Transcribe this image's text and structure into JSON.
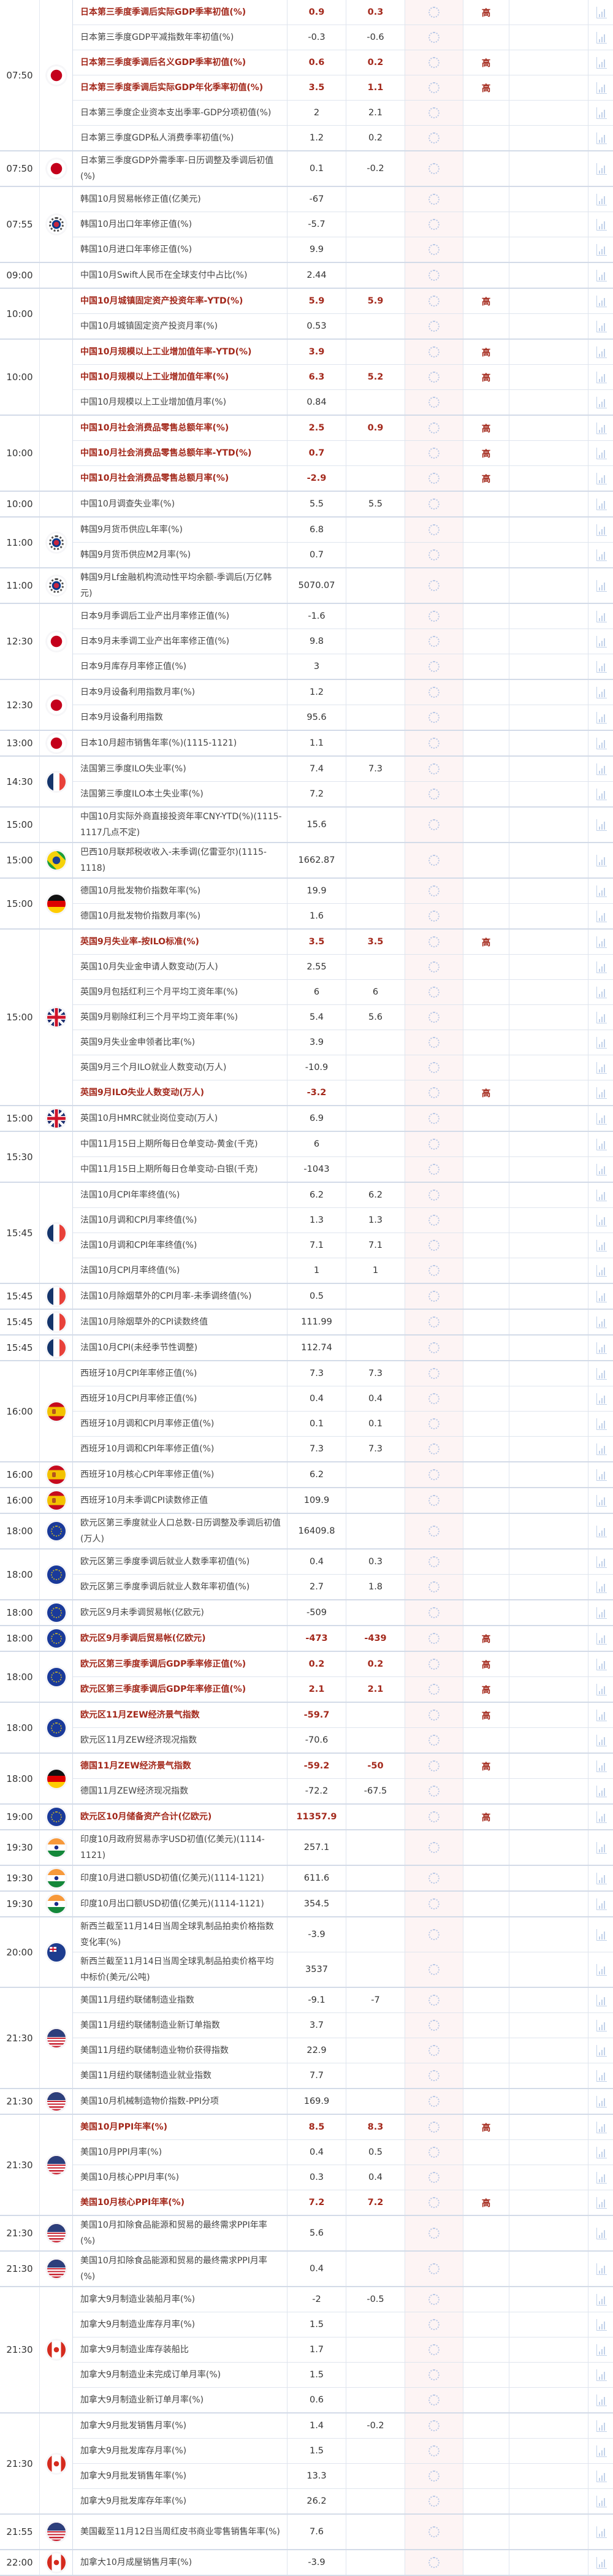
{
  "importance_label": "高",
  "colors": {
    "highlight_text": "#a3281b",
    "actual_column_bg": "#fdf4f4",
    "border": "#d3dbe8"
  },
  "icons": {
    "actual": "loading-spinner-icon",
    "chart": "bar-chart-icon"
  },
  "groups": [
    {
      "time": "07:50",
      "flag": "jp",
      "rows": [
        {
          "name": "日本第三季度季调后实际GDP季率初值(%)",
          "prev": "0.9",
          "forecast": "0.3",
          "imp": true
        },
        {
          "name": "日本第三季度GDP平减指数年率初值(%)",
          "prev": "-0.3",
          "forecast": "-0.6"
        },
        {
          "name": "日本第三季度季调后名义GDP季率初值(%)",
          "prev": "0.6",
          "forecast": "0.2",
          "imp": true
        },
        {
          "name": "日本第三季度季调后实际GDP年化季率初值(%)",
          "prev": "3.5",
          "forecast": "1.1",
          "imp": true
        },
        {
          "name": "日本第三季度企业资本支出季率-GDP分项初值(%)",
          "prev": "2",
          "forecast": "2.1"
        },
        {
          "name": "日本第三季度GDP私人消费季率初值(%)",
          "prev": "1.2",
          "forecast": "0.2"
        }
      ]
    },
    {
      "time": "07:50",
      "flag": "jp",
      "rows": [
        {
          "name": "日本第三季度GDP外需季率-日历调整及季调后初值(%)",
          "prev": "0.1",
          "forecast": "-0.2",
          "dbl": true
        }
      ]
    },
    {
      "time": "07:55",
      "flag": "kr",
      "rows": [
        {
          "name": "韩国10月贸易帐修正值(亿美元)",
          "prev": "-67"
        },
        {
          "name": "韩国10月出口年率修正值(%)",
          "prev": "-5.7"
        },
        {
          "name": "韩国10月进口年率修正值(%)",
          "prev": "9.9"
        }
      ]
    },
    {
      "time": "09:00",
      "flag": "",
      "rows": [
        {
          "name": "中国10月Swift人民币在全球支付中占比(%)",
          "prev": "2.44"
        }
      ]
    },
    {
      "time": "10:00",
      "flag": "",
      "rows": [
        {
          "name": "中国10月城镇固定资产投资年率-YTD(%)",
          "prev": "5.9",
          "forecast": "5.9",
          "imp": true
        },
        {
          "name": "中国10月城镇固定资产投资月率(%)",
          "prev": "0.53"
        }
      ]
    },
    {
      "time": "10:00",
      "flag": "",
      "rows": [
        {
          "name": "中国10月规模以上工业增加值年率-YTD(%)",
          "prev": "3.9",
          "imp": true
        },
        {
          "name": "中国10月规模以上工业增加值年率(%)",
          "prev": "6.3",
          "forecast": "5.2",
          "imp": true
        },
        {
          "name": "中国10月规模以上工业增加值月率(%)",
          "prev": "0.84"
        }
      ]
    },
    {
      "time": "10:00",
      "flag": "",
      "rows": [
        {
          "name": "中国10月社会消费品零售总额年率(%)",
          "prev": "2.5",
          "forecast": "0.9",
          "imp": true
        },
        {
          "name": "中国10月社会消费品零售总额年率-YTD(%)",
          "prev": "0.7",
          "imp": true
        },
        {
          "name": "中国10月社会消费品零售总额月率(%)",
          "prev": "-2.9",
          "imp": true
        }
      ]
    },
    {
      "time": "10:00",
      "flag": "",
      "rows": [
        {
          "name": "中国10月调查失业率(%)",
          "prev": "5.5",
          "forecast": "5.5"
        }
      ]
    },
    {
      "time": "11:00",
      "flag": "kr",
      "rows": [
        {
          "name": "韩国9月货币供应L年率(%)",
          "prev": "6.8"
        },
        {
          "name": "韩国9月货币供应M2月率(%)",
          "prev": "0.7"
        }
      ]
    },
    {
      "time": "11:00",
      "flag": "kr",
      "rows": [
        {
          "name": "韩国9月Lf金融机构流动性平均余额-季调后(万亿韩元)",
          "prev": "5070.07",
          "dbl": true
        }
      ]
    },
    {
      "time": "12:30",
      "flag": "jp",
      "rows": [
        {
          "name": "日本9月季调后工业产出月率修正值(%)",
          "prev": "-1.6"
        },
        {
          "name": "日本9月未季调工业产出年率修正值(%)",
          "prev": "9.8"
        },
        {
          "name": "日本9月库存月率修正值(%)",
          "prev": "3"
        }
      ]
    },
    {
      "time": "12:30",
      "flag": "jp",
      "rows": [
        {
          "name": "日本9月设备利用指数月率(%)",
          "prev": "1.2"
        },
        {
          "name": "日本9月设备利用指数",
          "prev": "95.6"
        }
      ]
    },
    {
      "time": "13:00",
      "flag": "jp",
      "rows": [
        {
          "name": "日本10月超市销售年率(%)(1115-1121)",
          "prev": "1.1"
        }
      ]
    },
    {
      "time": "14:30",
      "flag": "fr",
      "rows": [
        {
          "name": "法国第三季度ILO失业率(%)",
          "prev": "7.4",
          "forecast": "7.3"
        },
        {
          "name": "法国第三季度ILO本土失业率(%)",
          "prev": "7.2"
        }
      ]
    },
    {
      "time": "15:00",
      "flag": "",
      "rows": [
        {
          "name": "中国10月实际外商直接投资年率CNY-YTD(%)(1115-1117几点不定)",
          "prev": "15.6",
          "dbl": true
        }
      ]
    },
    {
      "time": "15:00",
      "flag": "br",
      "rows": [
        {
          "name": "巴西10月联邦税收收入-未季调(亿雷亚尔)(1115-1118)",
          "prev": "1662.87",
          "dbl": true
        }
      ]
    },
    {
      "time": "15:00",
      "flag": "de",
      "rows": [
        {
          "name": "德国10月批发物价指数年率(%)",
          "prev": "19.9"
        },
        {
          "name": "德国10月批发物价指数月率(%)",
          "prev": "1.6"
        }
      ]
    },
    {
      "time": "15:00",
      "flag": "uk",
      "rows": [
        {
          "name": "英国9月失业率-按ILO标准(%)",
          "prev": "3.5",
          "forecast": "3.5",
          "imp": true
        },
        {
          "name": "英国10月失业金申请人数变动(万人)",
          "prev": "2.55"
        },
        {
          "name": "英国9月包括红利三个月平均工资年率(%)",
          "prev": "6",
          "forecast": "6"
        },
        {
          "name": "英国9月剔除红利三个月平均工资年率(%)",
          "prev": "5.4",
          "forecast": "5.6"
        },
        {
          "name": "英国9月失业金申领者比率(%)",
          "prev": "3.9"
        },
        {
          "name": "英国9月三个月ILO就业人数变动(万人)",
          "prev": "-10.9"
        },
        {
          "name": "英国9月ILO失业人数变动(万人)",
          "prev": "-3.2",
          "imp": true
        }
      ]
    },
    {
      "time": "15:00",
      "flag": "uk",
      "rows": [
        {
          "name": "英国10月HMRC就业岗位变动(万人)",
          "prev": "6.9"
        }
      ]
    },
    {
      "time": "15:30",
      "flag": "",
      "rows": [
        {
          "name": "中国11月15日上期所每日仓单变动-黄金(千克)",
          "prev": "6"
        },
        {
          "name": "中国11月15日上期所每日仓单变动-白银(千克)",
          "prev": "-1043"
        }
      ]
    },
    {
      "time": "15:45",
      "flag": "fr",
      "rows": [
        {
          "name": "法国10月CPI年率终值(%)",
          "prev": "6.2",
          "forecast": "6.2"
        },
        {
          "name": "法国10月调和CPI月率终值(%)",
          "prev": "1.3",
          "forecast": "1.3"
        },
        {
          "name": "法国10月调和CPI年率终值(%)",
          "prev": "7.1",
          "forecast": "7.1"
        },
        {
          "name": "法国10月CPI月率终值(%)",
          "prev": "1",
          "forecast": "1"
        }
      ]
    },
    {
      "time": "15:45",
      "flag": "fr",
      "rows": [
        {
          "name": "法国10月除烟草外的CPI月率-未季调终值(%)",
          "prev": "0.5"
        }
      ]
    },
    {
      "time": "15:45",
      "flag": "fr",
      "rows": [
        {
          "name": "法国10月除烟草外的CPI读数终值",
          "prev": "111.99"
        }
      ]
    },
    {
      "time": "15:45",
      "flag": "fr",
      "rows": [
        {
          "name": "法国10月CPI(未经季节性调整)",
          "prev": "112.74"
        }
      ]
    },
    {
      "time": "16:00",
      "flag": "es",
      "rows": [
        {
          "name": "西班牙10月CPI年率修正值(%)",
          "prev": "7.3",
          "forecast": "7.3"
        },
        {
          "name": "西班牙10月CPI月率修正值(%)",
          "prev": "0.4",
          "forecast": "0.4"
        },
        {
          "name": "西班牙10月调和CPI月率修正值(%)",
          "prev": "0.1",
          "forecast": "0.1"
        },
        {
          "name": "西班牙10月调和CPI年率修正值(%)",
          "prev": "7.3",
          "forecast": "7.3"
        }
      ]
    },
    {
      "time": "16:00",
      "flag": "es",
      "rows": [
        {
          "name": "西班牙10月核心CPI年率修正值(%)",
          "prev": "6.2"
        }
      ]
    },
    {
      "time": "16:00",
      "flag": "es",
      "rows": [
        {
          "name": "西班牙10月未季调CPI读数修正值",
          "prev": "109.9"
        }
      ]
    },
    {
      "time": "18:00",
      "flag": "eu",
      "rows": [
        {
          "name": "欧元区第三季度就业人口总数-日历调整及季调后初值(万人)",
          "prev": "16409.8",
          "dbl": true
        }
      ]
    },
    {
      "time": "18:00",
      "flag": "eu",
      "rows": [
        {
          "name": "欧元区第三季度季调后就业人数季率初值(%)",
          "prev": "0.4",
          "forecast": "0.3"
        },
        {
          "name": "欧元区第三季度季调后就业人数年率初值(%)",
          "prev": "2.7",
          "forecast": "1.8"
        }
      ]
    },
    {
      "time": "18:00",
      "flag": "eu",
      "rows": [
        {
          "name": "欧元区9月未季调贸易帐(亿欧元)",
          "prev": "-509"
        }
      ]
    },
    {
      "time": "18:00",
      "flag": "eu",
      "rows": [
        {
          "name": "欧元区9月季调后贸易帐(亿欧元)",
          "prev": "-473",
          "forecast": "-439",
          "imp": true
        }
      ]
    },
    {
      "time": "18:00",
      "flag": "eu",
      "rows": [
        {
          "name": "欧元区第三季度季调后GDP季率修正值(%)",
          "prev": "0.2",
          "forecast": "0.2",
          "imp": true
        },
        {
          "name": "欧元区第三季度季调后GDP年率修正值(%)",
          "prev": "2.1",
          "forecast": "2.1",
          "imp": true
        }
      ]
    },
    {
      "time": "18:00",
      "flag": "eu",
      "rows": [
        {
          "name": "欧元区11月ZEW经济景气指数",
          "prev": "-59.7",
          "imp": true
        },
        {
          "name": "欧元区11月ZEW经济现况指数",
          "prev": "-70.6"
        }
      ]
    },
    {
      "time": "18:00",
      "flag": "de",
      "rows": [
        {
          "name": "德国11月ZEW经济景气指数",
          "prev": "-59.2",
          "forecast": "-50",
          "imp": true
        },
        {
          "name": "德国11月ZEW经济现况指数",
          "prev": "-72.2",
          "forecast": "-67.5"
        }
      ]
    },
    {
      "time": "19:00",
      "flag": "eu",
      "rows": [
        {
          "name": "欧元区10月储备资产合计(亿欧元)",
          "prev": "11357.9",
          "imp": true
        }
      ]
    },
    {
      "time": "19:30",
      "flag": "in",
      "rows": [
        {
          "name": "印度10月政府贸易赤字USD初值(亿美元)(1114-1121)",
          "prev": "257.1",
          "dbl": true
        }
      ]
    },
    {
      "time": "19:30",
      "flag": "in",
      "rows": [
        {
          "name": "印度10月进口额USD初值(亿美元)(1114-1121)",
          "prev": "611.6"
        }
      ]
    },
    {
      "time": "19:30",
      "flag": "in",
      "rows": [
        {
          "name": "印度10月出口额USD初值(亿美元)(1114-1121)",
          "prev": "354.5"
        }
      ]
    },
    {
      "time": "20:00",
      "flag": "nz",
      "rows": [
        {
          "name": "新西兰截至11月14日当周全球乳制品拍卖价格指数变化率(%)",
          "prev": "-3.9",
          "dbl": true
        },
        {
          "name": "新西兰截至11月14日当周全球乳制品拍卖价格平均中标价(美元/公吨)",
          "prev": "3537",
          "dbl": true
        }
      ]
    },
    {
      "time": "21:30",
      "flag": "us",
      "rows": [
        {
          "name": "美国11月纽约联储制造业指数",
          "prev": "-9.1",
          "forecast": "-7"
        },
        {
          "name": "美国11月纽约联储制造业新订单指数",
          "prev": "3.7"
        },
        {
          "name": "美国11月纽约联储制造业物价获得指数",
          "prev": "22.9"
        },
        {
          "name": "美国11月纽约联储制造业就业指数",
          "prev": "7.7"
        }
      ]
    },
    {
      "time": "21:30",
      "flag": "us",
      "rows": [
        {
          "name": "美国10月机械制造物价指数-PPI分项",
          "prev": "169.9"
        }
      ]
    },
    {
      "time": "21:30",
      "flag": "us",
      "rows": [
        {
          "name": "美国10月PPI年率(%)",
          "prev": "8.5",
          "forecast": "8.3",
          "imp": true
        },
        {
          "name": "美国10月PPI月率(%)",
          "prev": "0.4",
          "forecast": "0.5"
        },
        {
          "name": "美国10月核心PPI月率(%)",
          "prev": "0.3",
          "forecast": "0.4"
        },
        {
          "name": "美国10月核心PPI年率(%)",
          "prev": "7.2",
          "forecast": "7.2",
          "imp": true
        }
      ]
    },
    {
      "time": "21:30",
      "flag": "us",
      "rows": [
        {
          "name": "美国10月扣除食品能源和贸易的最终需求PPI年率(%)",
          "prev": "5.6",
          "dbl": true
        }
      ]
    },
    {
      "time": "21:30",
      "flag": "us",
      "rows": [
        {
          "name": "美国10月扣除食品能源和贸易的最终需求PPI月率(%)",
          "prev": "0.4",
          "dbl": true
        }
      ]
    },
    {
      "time": "21:30",
      "flag": "ca",
      "rows": [
        {
          "name": "加拿大9月制造业装船月率(%)",
          "prev": "-2",
          "forecast": "-0.5"
        },
        {
          "name": "加拿大9月制造业库存月率(%)",
          "prev": "1.5"
        },
        {
          "name": "加拿大9月制造业库存装船比",
          "prev": "1.7"
        },
        {
          "name": "加拿大9月制造业未完成订单月率(%)",
          "prev": "1.5"
        },
        {
          "name": "加拿大9月制造业新订单月率(%)",
          "prev": "0.6"
        }
      ]
    },
    {
      "time": "21:30",
      "flag": "ca",
      "rows": [
        {
          "name": "加拿大9月批发销售月率(%)",
          "prev": "1.4",
          "forecast": "-0.2"
        },
        {
          "name": "加拿大9月批发库存月率(%)",
          "prev": "1.5"
        },
        {
          "name": "加拿大9月批发销售年率(%)",
          "prev": "13.3"
        },
        {
          "name": "加拿大9月批发库存年率(%)",
          "prev": "26.2"
        }
      ]
    },
    {
      "time": "21:55",
      "flag": "us",
      "rows": [
        {
          "name": "美国截至11月12日当周红皮书商业零售销售年率(%)",
          "prev": "7.6",
          "dbl": true
        }
      ]
    },
    {
      "time": "22:00",
      "flag": "ca",
      "rows": [
        {
          "name": "加拿大10月成屋销售月率(%)",
          "prev": "-3.9"
        }
      ]
    }
  ]
}
